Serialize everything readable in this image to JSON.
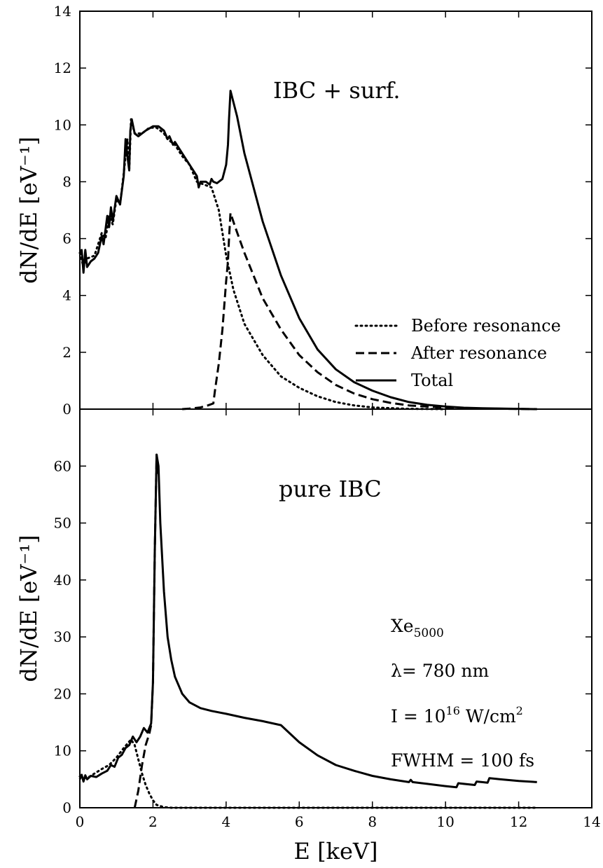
{
  "chart_data": [
    {
      "type": "line",
      "panel_label": "IBC + surf.",
      "ylabel": "dN/dE [eV⁻¹]",
      "xlabel": "",
      "xlim": [
        0,
        14
      ],
      "ylim": [
        0,
        14
      ],
      "xticks": [
        0,
        2,
        4,
        6,
        8,
        10,
        12,
        14
      ],
      "yticks": [
        0,
        2,
        4,
        6,
        8,
        10,
        12,
        14
      ],
      "x_tick_labels": false,
      "grid": false,
      "legend": {
        "position": "lower-right"
      },
      "series": [
        {
          "name": "Before resonance",
          "style": "dotted",
          "points": [
            [
              0.0,
              5.5
            ],
            [
              0.1,
              5.0
            ],
            [
              0.2,
              5.3
            ],
            [
              0.4,
              5.4
            ],
            [
              0.6,
              6.2
            ],
            [
              0.7,
              6.0
            ],
            [
              0.8,
              6.8
            ],
            [
              0.9,
              6.5
            ],
            [
              1.0,
              7.4
            ],
            [
              1.1,
              7.2
            ],
            [
              1.2,
              8.3
            ],
            [
              1.3,
              9.5
            ],
            [
              1.35,
              8.4
            ],
            [
              1.4,
              10.2
            ],
            [
              1.5,
              9.7
            ],
            [
              1.7,
              9.7
            ],
            [
              1.9,
              9.9
            ],
            [
              2.1,
              9.9
            ],
            [
              2.3,
              9.7
            ],
            [
              2.4,
              9.5
            ],
            [
              2.6,
              9.3
            ],
            [
              2.8,
              8.9
            ],
            [
              3.0,
              8.6
            ],
            [
              3.2,
              8.0
            ],
            [
              3.4,
              7.9
            ],
            [
              3.6,
              7.8
            ],
            [
              3.8,
              7.0
            ],
            [
              4.0,
              5.4
            ],
            [
              4.2,
              4.2
            ],
            [
              4.5,
              3.0
            ],
            [
              5.0,
              1.9
            ],
            [
              5.5,
              1.15
            ],
            [
              6.0,
              0.75
            ],
            [
              6.5,
              0.45
            ],
            [
              7.0,
              0.25
            ],
            [
              7.5,
              0.13
            ],
            [
              8.0,
              0.06
            ],
            [
              9.0,
              0.01
            ],
            [
              10.0,
              0.0
            ]
          ]
        },
        {
          "name": "After resonance",
          "style": "dashed",
          "points": [
            [
              2.8,
              0.0
            ],
            [
              3.0,
              0.02
            ],
            [
              3.3,
              0.06
            ],
            [
              3.5,
              0.13
            ],
            [
              3.65,
              0.2
            ],
            [
              3.7,
              0.7
            ],
            [
              3.8,
              1.6
            ],
            [
              3.9,
              2.8
            ],
            [
              4.0,
              4.5
            ],
            [
              4.05,
              5.2
            ],
            [
              4.08,
              6.0
            ],
            [
              4.12,
              6.9
            ],
            [
              4.25,
              6.4
            ],
            [
              4.5,
              5.5
            ],
            [
              5.0,
              3.9
            ],
            [
              5.5,
              2.8
            ],
            [
              6.0,
              1.9
            ],
            [
              6.5,
              1.3
            ],
            [
              7.0,
              0.85
            ],
            [
              7.5,
              0.55
            ],
            [
              8.0,
              0.35
            ],
            [
              8.5,
              0.22
            ],
            [
              9.0,
              0.13
            ],
            [
              10.0,
              0.05
            ],
            [
              11.0,
              0.02
            ],
            [
              12.5,
              0.0
            ]
          ]
        },
        {
          "name": "Total",
          "style": "solid",
          "points": [
            [
              0.0,
              5.5
            ],
            [
              0.05,
              5.6
            ],
            [
              0.1,
              4.8
            ],
            [
              0.15,
              5.6
            ],
            [
              0.2,
              5.0
            ],
            [
              0.3,
              5.2
            ],
            [
              0.4,
              5.3
            ],
            [
              0.5,
              5.5
            ],
            [
              0.6,
              6.1
            ],
            [
              0.65,
              5.8
            ],
            [
              0.75,
              6.8
            ],
            [
              0.8,
              6.4
            ],
            [
              0.85,
              7.1
            ],
            [
              0.9,
              6.6
            ],
            [
              1.0,
              7.5
            ],
            [
              1.1,
              7.2
            ],
            [
              1.2,
              8.2
            ],
            [
              1.25,
              9.5
            ],
            [
              1.3,
              8.9
            ],
            [
              1.35,
              8.4
            ],
            [
              1.38,
              9.8
            ],
            [
              1.42,
              10.2
            ],
            [
              1.5,
              9.7
            ],
            [
              1.6,
              9.6
            ],
            [
              1.8,
              9.8
            ],
            [
              2.0,
              9.95
            ],
            [
              2.15,
              9.95
            ],
            [
              2.3,
              9.8
            ],
            [
              2.4,
              9.5
            ],
            [
              2.45,
              9.6
            ],
            [
              2.55,
              9.3
            ],
            [
              2.6,
              9.4
            ],
            [
              2.75,
              9.1
            ],
            [
              2.85,
              8.9
            ],
            [
              3.0,
              8.6
            ],
            [
              3.1,
              8.4
            ],
            [
              3.2,
              8.2
            ],
            [
              3.25,
              7.8
            ],
            [
              3.3,
              8.0
            ],
            [
              3.45,
              8.0
            ],
            [
              3.55,
              7.9
            ],
            [
              3.6,
              8.1
            ],
            [
              3.65,
              8.0
            ],
            [
              3.75,
              7.95
            ],
            [
              3.9,
              8.1
            ],
            [
              4.0,
              8.6
            ],
            [
              4.05,
              9.3
            ],
            [
              4.08,
              10.2
            ],
            [
              4.12,
              11.2
            ],
            [
              4.3,
              10.3
            ],
            [
              4.5,
              9.0
            ],
            [
              5.0,
              6.6
            ],
            [
              5.5,
              4.7
            ],
            [
              6.0,
              3.2
            ],
            [
              6.5,
              2.1
            ],
            [
              7.0,
              1.4
            ],
            [
              7.5,
              0.95
            ],
            [
              8.0,
              0.65
            ],
            [
              8.5,
              0.42
            ],
            [
              9.0,
              0.25
            ],
            [
              9.5,
              0.15
            ],
            [
              10.0,
              0.09
            ],
            [
              10.5,
              0.05
            ],
            [
              11.0,
              0.03
            ],
            [
              12.0,
              0.01
            ],
            [
              12.5,
              0.0
            ]
          ]
        }
      ]
    },
    {
      "type": "line",
      "panel_label": "pure IBC",
      "ylabel": "dN/dE [eV⁻¹]",
      "xlabel": "E [keV]",
      "xlim": [
        0,
        14
      ],
      "ylim": [
        0,
        70
      ],
      "xticks": [
        0,
        2,
        4,
        6,
        8,
        10,
        12,
        14
      ],
      "yticks": [
        0,
        10,
        20,
        30,
        40,
        50,
        60
      ],
      "x_tick_labels": true,
      "grid": false,
      "annotations": {
        "species": "Xe",
        "species_sub": "5000",
        "wavelength": "λ= 780 nm",
        "intensity_pre": "I = 10",
        "intensity_exp": "16",
        "intensity_post": " W/cm",
        "intensity_unit_exp": "2",
        "fwhm": "FWHM = 100 fs"
      },
      "series": [
        {
          "name": "Before resonance",
          "style": "dotted",
          "points": [
            [
              0.0,
              5.5
            ],
            [
              0.2,
              5.2
            ],
            [
              0.4,
              6.0
            ],
            [
              0.6,
              6.8
            ],
            [
              0.8,
              7.5
            ],
            [
              1.0,
              8.8
            ],
            [
              1.2,
              10.5
            ],
            [
              1.4,
              12.0
            ],
            [
              1.5,
              11.0
            ],
            [
              1.6,
              8.5
            ],
            [
              1.7,
              6.0
            ],
            [
              1.8,
              4.0
            ],
            [
              1.9,
              2.5
            ],
            [
              2.0,
              1.3
            ],
            [
              2.1,
              0.5
            ],
            [
              2.3,
              0.1
            ],
            [
              2.5,
              0.0
            ],
            [
              12.5,
              0.0
            ]
          ]
        },
        {
          "name": "After resonance",
          "style": "dashed",
          "points": [
            [
              1.5,
              0.0
            ],
            [
              1.6,
              3.0
            ],
            [
              1.7,
              7.5
            ],
            [
              1.8,
              11.0
            ],
            [
              1.9,
              13.0
            ],
            [
              1.95,
              14.5
            ],
            [
              2.0,
              22.0
            ],
            [
              2.05,
              45.0
            ],
            [
              2.1,
              62.0
            ],
            [
              2.15,
              58.0
            ]
          ]
        },
        {
          "name": "Total",
          "style": "solid",
          "points": [
            [
              0.0,
              5.0
            ],
            [
              0.05,
              5.8
            ],
            [
              0.1,
              4.6
            ],
            [
              0.15,
              5.7
            ],
            [
              0.2,
              5.0
            ],
            [
              0.3,
              5.6
            ],
            [
              0.45,
              5.4
            ],
            [
              0.6,
              6.0
            ],
            [
              0.75,
              6.5
            ],
            [
              0.85,
              7.5
            ],
            [
              0.95,
              7.2
            ],
            [
              1.05,
              8.8
            ],
            [
              1.15,
              9.3
            ],
            [
              1.25,
              10.5
            ],
            [
              1.35,
              11.0
            ],
            [
              1.45,
              12.5
            ],
            [
              1.55,
              11.5
            ],
            [
              1.65,
              12.5
            ],
            [
              1.75,
              14.0
            ],
            [
              1.85,
              13.2
            ],
            [
              1.95,
              14.8
            ],
            [
              2.0,
              22.0
            ],
            [
              2.05,
              45.0
            ],
            [
              2.1,
              62.0
            ],
            [
              2.15,
              60.0
            ],
            [
              2.2,
              50.0
            ],
            [
              2.3,
              38.0
            ],
            [
              2.4,
              30.0
            ],
            [
              2.5,
              26.0
            ],
            [
              2.6,
              23.0
            ],
            [
              2.8,
              20.0
            ],
            [
              3.0,
              18.5
            ],
            [
              3.3,
              17.5
            ],
            [
              3.6,
              17.0
            ],
            [
              4.0,
              16.5
            ],
            [
              4.5,
              15.8
            ],
            [
              5.0,
              15.2
            ],
            [
              5.5,
              14.5
            ],
            [
              6.0,
              11.5
            ],
            [
              6.5,
              9.2
            ],
            [
              7.0,
              7.5
            ],
            [
              7.5,
              6.5
            ],
            [
              8.0,
              5.6
            ],
            [
              8.5,
              5.0
            ],
            [
              9.0,
              4.5
            ],
            [
              9.05,
              4.9
            ],
            [
              9.1,
              4.5
            ],
            [
              9.5,
              4.2
            ],
            [
              10.0,
              3.8
            ],
            [
              10.3,
              3.6
            ],
            [
              10.35,
              4.3
            ],
            [
              10.5,
              4.2
            ],
            [
              10.8,
              4.0
            ],
            [
              10.85,
              4.6
            ],
            [
              11.0,
              4.5
            ],
            [
              11.15,
              4.4
            ],
            [
              11.2,
              5.2
            ],
            [
              11.5,
              5.0
            ],
            [
              12.0,
              4.7
            ],
            [
              12.5,
              4.5
            ]
          ]
        }
      ]
    }
  ]
}
